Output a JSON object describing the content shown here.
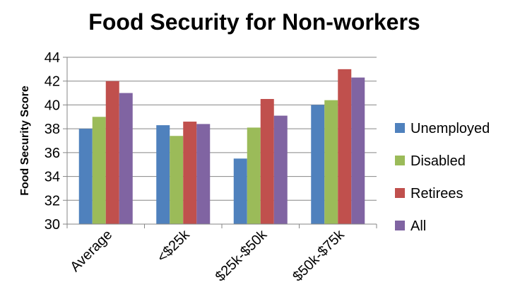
{
  "chart_data": {
    "type": "bar",
    "title": "Food Security  for Non-workers",
    "xlabel": "",
    "ylabel": "Food Security Score",
    "ylim": [
      30,
      44
    ],
    "yticks": [
      30,
      32,
      34,
      36,
      38,
      40,
      42,
      44
    ],
    "categories": [
      "Average",
      "<$25k",
      "$25k-$50k",
      "$50k-$75k"
    ],
    "series": [
      {
        "name": "Unemployed",
        "color": "#4F81BD",
        "values": [
          38.0,
          38.3,
          35.5,
          40.0
        ]
      },
      {
        "name": "Disabled",
        "color": "#9BBB59",
        "values": [
          39.0,
          37.4,
          38.1,
          40.4
        ]
      },
      {
        "name": "Retirees",
        "color": "#C0504D",
        "values": [
          42.0,
          38.6,
          40.5,
          43.0
        ]
      },
      {
        "name": "All",
        "color": "#8064A2",
        "values": [
          41.0,
          38.4,
          39.1,
          42.3
        ]
      }
    ],
    "grid": true,
    "legend_position": "right"
  }
}
